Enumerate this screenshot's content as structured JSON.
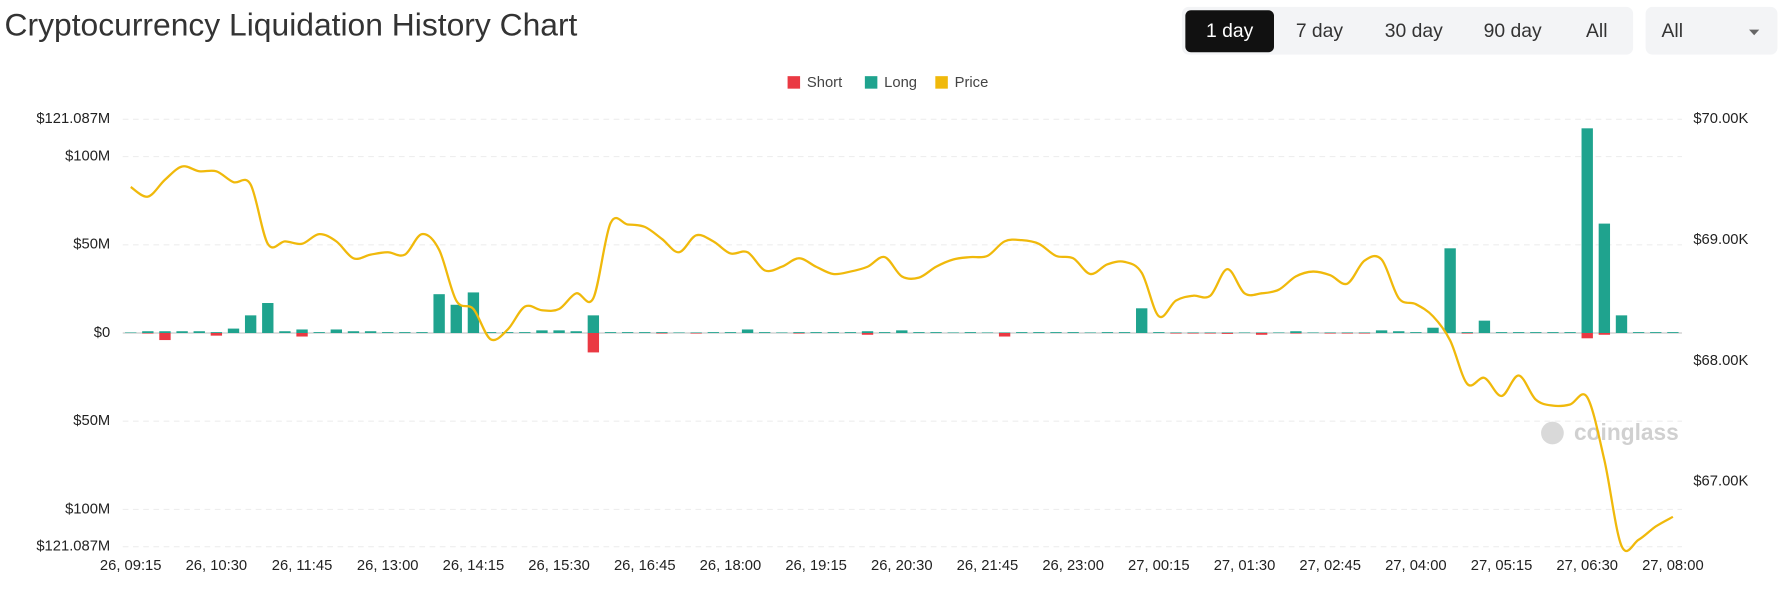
{
  "controls": {
    "ranges": [
      "1 day",
      "7 day",
      "30 day",
      "90 day",
      "All"
    ],
    "selected": 0,
    "dropdown": "All"
  },
  "chart_data": {
    "type": "bar",
    "title": "Cryptocurrency Liquidation History Chart",
    "watermark": "coinglass",
    "categories": [
      "26, 09:15",
      null,
      null,
      null,
      null,
      "26, 10:30",
      null,
      null,
      null,
      null,
      "26, 11:45",
      null,
      null,
      null,
      null,
      "26, 13:00",
      null,
      null,
      null,
      null,
      "26, 14:15",
      null,
      null,
      null,
      null,
      "26, 15:30",
      null,
      null,
      null,
      null,
      "26, 16:45",
      null,
      null,
      null,
      null,
      "26, 18:00",
      null,
      null,
      null,
      null,
      "26, 19:15",
      null,
      null,
      null,
      null,
      "26, 20:30",
      null,
      null,
      null,
      null,
      "26, 21:45",
      null,
      null,
      null,
      null,
      "26, 23:00",
      null,
      null,
      null,
      null,
      "27, 00:15",
      null,
      null,
      null,
      null,
      "27, 01:30",
      null,
      null,
      null,
      null,
      "27, 02:45",
      null,
      null,
      null,
      null,
      "27, 04:00",
      null,
      null,
      null,
      null,
      "27, 05:15",
      null,
      null,
      null,
      null,
      "27, 06:30",
      null,
      null,
      null,
      null,
      "27, 08:00"
    ],
    "series": [
      {
        "name": "Short",
        "color": "#ea3943",
        "type": "bar",
        "axis": "y",
        "values": [
          0,
          -0.3,
          -4,
          0,
          0,
          -1.5,
          0,
          0,
          0,
          0,
          -2,
          0,
          0,
          0,
          0,
          0,
          0,
          0,
          0,
          0,
          0,
          0,
          0,
          0,
          0,
          0,
          0,
          -11,
          0,
          0,
          0,
          -0.3,
          0,
          -0.3,
          0,
          0,
          0,
          0,
          0,
          -0.3,
          0,
          0,
          0,
          -1,
          0,
          0,
          0,
          0,
          0,
          0,
          0,
          -2,
          0,
          0,
          0,
          0,
          0,
          0,
          0,
          0,
          0,
          -0.3,
          -0.3,
          -0.3,
          -0.5,
          0,
          -1,
          0,
          -0.3,
          0,
          -0.3,
          -0.3,
          -0.3,
          0,
          0,
          0,
          0,
          0,
          -0.3,
          0,
          0,
          0,
          0,
          0,
          0,
          -3,
          -1,
          0,
          0,
          0,
          0
        ]
      },
      {
        "name": "Long",
        "color": "#1fa38e",
        "type": "bar",
        "axis": "y",
        "values": [
          0.3,
          1,
          1,
          1,
          1,
          0.5,
          2.5,
          10,
          17,
          1,
          2,
          0.5,
          2,
          1,
          1,
          0.5,
          0.5,
          0.5,
          22,
          16,
          23,
          0.5,
          0.5,
          0.5,
          1.5,
          1.5,
          1,
          10,
          0.5,
          0.5,
          0.5,
          0.5,
          0.3,
          0.3,
          0.5,
          0.5,
          2,
          0.5,
          0.3,
          0.5,
          0.5,
          0.5,
          0.5,
          1,
          0.5,
          1.5,
          0.5,
          0.5,
          0.3,
          0.5,
          0.3,
          0.3,
          0.5,
          0.5,
          0.5,
          0.5,
          0.3,
          0.5,
          0.5,
          14,
          0.5,
          0.3,
          0.3,
          0.3,
          0.3,
          0.3,
          0.3,
          0.3,
          1,
          0.3,
          0.3,
          0.3,
          0.3,
          1.5,
          1,
          0.5,
          3,
          48,
          0.5,
          7,
          0.5,
          0.5,
          0.5,
          0.5,
          0.5,
          116,
          62,
          10,
          0.5,
          0.5,
          0.5
        ]
      },
      {
        "name": "Price",
        "color": "#f0b90b",
        "type": "line",
        "axis": "y2",
        "values": [
          69440,
          69360,
          69500,
          69610,
          69570,
          69570,
          69480,
          69460,
          68970,
          68990,
          68970,
          69050,
          68990,
          68850,
          68880,
          68900,
          68880,
          69050,
          68920,
          68500,
          68430,
          68180,
          68260,
          68450,
          68420,
          68430,
          68560,
          68520,
          69140,
          69130,
          69110,
          69010,
          68900,
          69040,
          68990,
          68890,
          68900,
          68750,
          68780,
          68850,
          68780,
          68720,
          68740,
          68780,
          68860,
          68700,
          68690,
          68780,
          68840,
          68860,
          68870,
          68990,
          69000,
          68970,
          68870,
          68850,
          68720,
          68800,
          68820,
          68730,
          68370,
          68500,
          68540,
          68540,
          68760,
          68560,
          68560,
          68590,
          68700,
          68740,
          68710,
          68640,
          68830,
          68840,
          68520,
          68470,
          68370,
          68170,
          67810,
          67860,
          67710,
          67880,
          67680,
          67630,
          67640,
          67700,
          67180,
          66470,
          66520,
          66630,
          66710
        ]
      }
    ],
    "ylim": [
      -121.087,
      121.087
    ],
    "yticks": [
      {
        "value": 121.087,
        "label": "$121.087M"
      },
      {
        "value": 100,
        "label": "$100M"
      },
      {
        "value": 50,
        "label": "$50M"
      },
      {
        "value": 0,
        "label": "$0"
      },
      {
        "value": -50,
        "label": "$50M"
      },
      {
        "value": -100,
        "label": "$100M"
      },
      {
        "value": -121.087,
        "label": "$121.087M"
      }
    ],
    "y2lim": [
      66463,
      70000
    ],
    "y2ticks": [
      {
        "value": 70000,
        "label": "$70.00K"
      },
      {
        "value": 69000,
        "label": "$69.00K"
      },
      {
        "value": 68000,
        "label": "$68.00K"
      },
      {
        "value": 67000,
        "label": "$67.00K"
      }
    ],
    "grid": true,
    "legend": "top"
  }
}
